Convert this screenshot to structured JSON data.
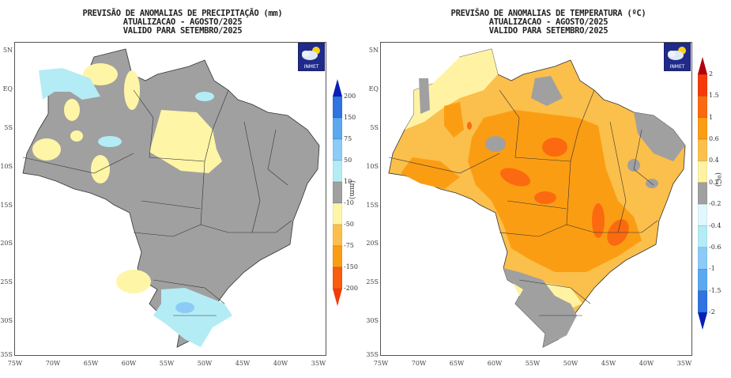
{
  "panels": [
    {
      "id": "precipitation",
      "title_lines": [
        "PREVISÃO DE ANOMALIAS DE PRECIPITAÇÃO (mm)",
        "ATUALIZACAO - AGOSTO/2025",
        "VALIDO PARA SETEMBRO/2025"
      ],
      "logo_text": "INMET",
      "colorbar": {
        "unit": "(mm)",
        "labels": [
          "200",
          "150",
          "75",
          "50",
          "10",
          "-10",
          "-50",
          "-75",
          "-150",
          "-200"
        ],
        "colors": [
          "#0a1fb8",
          "#2f74e0",
          "#5aa8f0",
          "#8ccbf7",
          "#b3ecf5",
          "#a0a0a0",
          "#fff5a6",
          "#fbbf4b",
          "#fb9d13",
          "#fa5c10",
          "#f23a0a"
        ]
      }
    },
    {
      "id": "temperature",
      "title_lines": [
        "PREVIŠAO DE ANOMALIAS DE TEMPERATURA (ºC)",
        "ATUALIZACAO - AGOSTO/2025",
        "VALIDO PARA SETEMBRO/2025"
      ],
      "logo_text": "INMET",
      "colorbar": {
        "unit": "(ºC)",
        "labels": [
          "2",
          "1.5",
          "1",
          "0.6",
          "0.4",
          "0.2",
          "-0.2",
          "-0.4",
          "-0.6",
          "-1",
          "-1.5",
          "-2"
        ],
        "colors": [
          "#b3000c",
          "#f53a0a",
          "#fb6a10",
          "#fb9d13",
          "#fbbf4b",
          "#fff3a3",
          "#a0a0a0",
          "#e0f8fb",
          "#b3ecf5",
          "#8ccbf7",
          "#5aa8f0",
          "#2f74e0",
          "#0a1fb8"
        ]
      }
    }
  ],
  "axes": {
    "lat_labels": [
      "5N",
      "EQ",
      "5S",
      "10S",
      "15S",
      "20S",
      "25S",
      "30S",
      "35S"
    ],
    "lon_labels": [
      "75W",
      "70W",
      "65W",
      "60W",
      "55W",
      "50W",
      "45W",
      "40W",
      "35W"
    ]
  }
}
